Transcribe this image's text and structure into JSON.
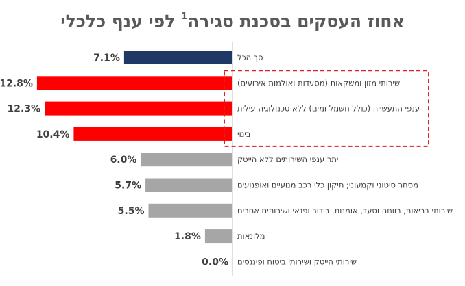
{
  "title": "אחוז העסקים בסכנת סגירה",
  "title_superscript": "1",
  "title_suffix": "לפי ענף כלכלי",
  "colors": {
    "total": "#1F3864",
    "highlight": "#FF0000",
    "other": "#A6A6A6",
    "highlight_box": "#E02020",
    "axis": "#BFBFBF",
    "text": "#404040",
    "title": "#595959"
  },
  "chart_data": {
    "type": "bar",
    "orientation": "horizontal",
    "title": "אחוז העסקים בסכנת סגירה¹ לפי ענף כלכלי",
    "categories": [
      "סך הכל",
      "שירותי מזון ומשקאות (מסעדות ואולמות אירועים)",
      "ענפי התעשייה (כולל חשמל ומים) ללא טכנולוגיה-עילית",
      "בינוי",
      "יתר ענפי השירותים ללא הייטק",
      "מסחר סיטוני וקמעוני; תיקון כלי רכב מנועיים ואופנועים",
      "שירותי בריאות, רווחה וסעד, אומנות, בידור ופנאי ושירותים אחרים",
      "מלונאות",
      "שירותי הייטק ושירותי ביטוח ופיננסים"
    ],
    "values": [
      7.1,
      12.8,
      12.3,
      10.4,
      6.0,
      5.7,
      5.5,
      1.8,
      0.0
    ],
    "value_labels": [
      "7.1%",
      "12.8%",
      "12.3%",
      "10.4%",
      "6.0%",
      "5.7%",
      "5.5%",
      "1.8%",
      "0.0%"
    ],
    "bar_groups": [
      "total",
      "highlight",
      "highlight",
      "highlight",
      "other",
      "other",
      "other",
      "other",
      "other"
    ],
    "highlighted_categories": [
      1,
      2,
      3
    ],
    "xlim": [
      0,
      13.5
    ],
    "xlabel": "",
    "ylabel": "",
    "grid": false,
    "legend": "none"
  }
}
